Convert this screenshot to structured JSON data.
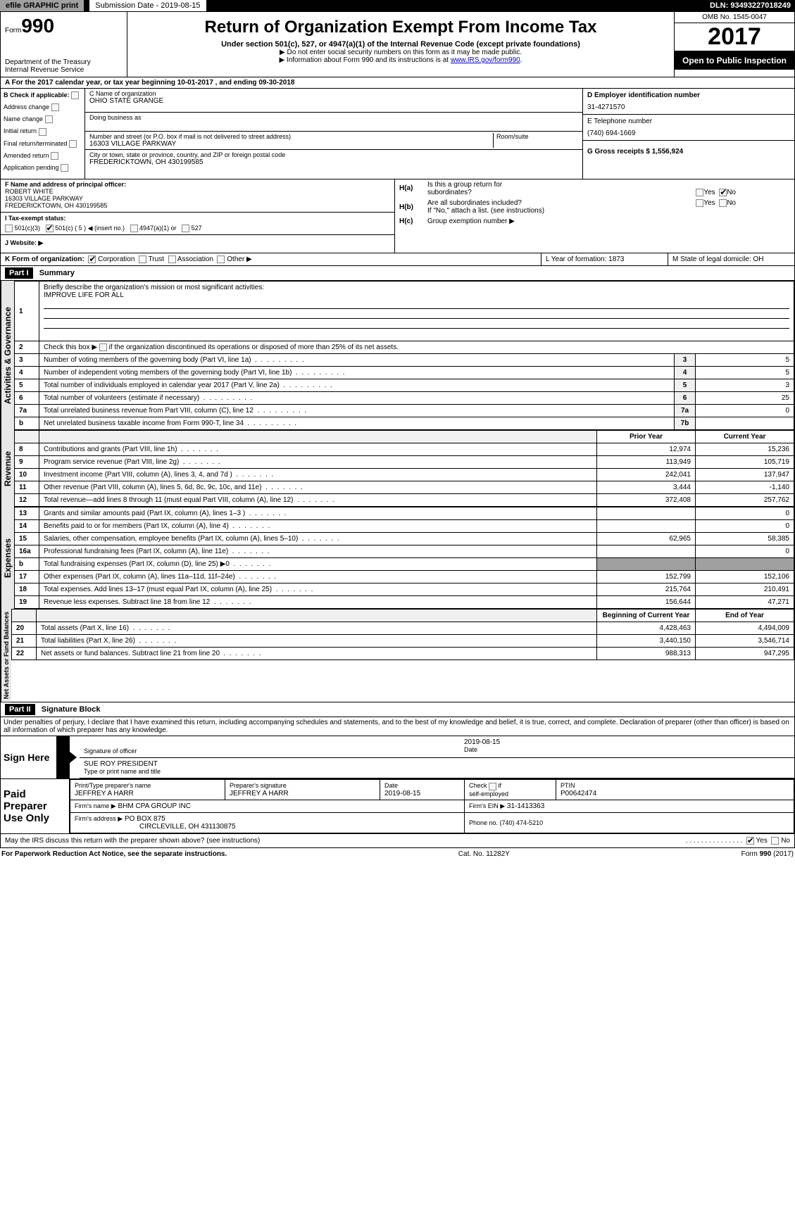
{
  "header": {
    "efile": "efile GRAPHIC print",
    "submission_label": "Submission Date - 2019-08-15",
    "dln": "DLN: 93493227018249"
  },
  "top": {
    "form_prefix": "Form",
    "form_number": "990",
    "dept1": "Department of the Treasury",
    "dept2": "Internal Revenue Service",
    "title": "Return of Organization Exempt From Income Tax",
    "sub1": "Under section 501(c), 527, or 4947(a)(1) of the Internal Revenue Code (except private foundations)",
    "sub2": "▶ Do not enter social security numbers on this form as it may be made public.",
    "sub3_prefix": "▶ Information about Form 990 and its instructions is at ",
    "sub3_link": "www.IRS.gov/form990",
    "omb": "OMB No. 1545-0047",
    "year": "2017",
    "open": "Open to Public Inspection"
  },
  "rowA": "A  For the 2017 calendar year, or tax year beginning 10-01-2017      , and ending 09-30-2018",
  "sectionB": {
    "b_label": "B Check if applicable:",
    "checks": [
      "Address change",
      "Name change",
      "Initial return",
      "Final return/terminated",
      "Amended return",
      "Application pending"
    ],
    "c_label": "C Name of organization",
    "org_name": "OHIO STATE GRANGE",
    "dba_label": "Doing business as",
    "addr_label": "Number and street (or P.O. box if mail is not delivered to street address)",
    "room_label": "Room/suite",
    "street": "16303 VILLAGE PARKWAY",
    "city_label": "City or town, state or province, country, and ZIP or foreign postal code",
    "city": "FREDERICKTOWN, OH  430199585",
    "d_label": "D Employer identification number",
    "ein": "31-4271570",
    "e_label": "E Telephone number",
    "phone": "(740) 694-1669",
    "g_label": "G Gross receipts $ 1,556,924"
  },
  "sectionF": {
    "f_label": "F Name and address of principal officer:",
    "name": "ROBERT WHITE",
    "street": "16303 VILLAGE PARKWAY",
    "city": "FREDERICKTOWN, OH  430199585",
    "i_label": "I   Tax-exempt status:",
    "i_opts": [
      "501(c)(3)",
      "501(c) ( 5 ) ◀ (insert no.)",
      "4947(a)(1) or",
      "527"
    ],
    "j_label": "J   Website: ▶",
    "ha_label": "H(a)",
    "ha_text1": "Is this a group return for",
    "ha_text2": "subordinates?",
    "hb_label": "H(b)",
    "hb_text": "Are all subordinates included?",
    "hb_note": "If \"No,\" attach a list. (see instructions)",
    "hc_label": "H(c)",
    "hc_text": "Group exemption number ▶",
    "yes": "Yes",
    "no": "No"
  },
  "rowK": {
    "k_label": "K Form of organization:",
    "opts": [
      "Corporation",
      "Trust",
      "Association",
      "Other ▶"
    ],
    "l_label": "L Year of formation: 1873",
    "m_label": "M State of legal domicile: OH"
  },
  "part1": {
    "header": "Part I",
    "title": "Summary",
    "l1_label": "Briefly describe the organization's mission or most significant activities:",
    "l1_value": "IMPROVE LIFE FOR ALL",
    "l2": "Check this box ▶       if the organization discontinued its operations or disposed of more than 25% of its net assets.",
    "rows_gov": [
      {
        "num": "3",
        "label": "Number of voting members of the governing body (Part VI, line 1a)",
        "box": "3",
        "val": "5"
      },
      {
        "num": "4",
        "label": "Number of independent voting members of the governing body (Part VI, line 1b)",
        "box": "4",
        "val": "5"
      },
      {
        "num": "5",
        "label": "Total number of individuals employed in calendar year 2017 (Part V, line 2a)",
        "box": "5",
        "val": "3"
      },
      {
        "num": "6",
        "label": "Total number of volunteers (estimate if necessary)",
        "box": "6",
        "val": "25"
      },
      {
        "num": "7a",
        "label": "Total unrelated business revenue from Part VIII, column (C), line 12",
        "box": "7a",
        "val": "0"
      },
      {
        "num": "b",
        "label": "Net unrelated business taxable income from Form 990-T, line 34",
        "box": "7b",
        "val": ""
      }
    ],
    "col_prior": "Prior Year",
    "col_current": "Current Year",
    "rows_rev": [
      {
        "num": "8",
        "label": "Contributions and grants (Part VIII, line 1h)",
        "p": "12,974",
        "c": "15,236"
      },
      {
        "num": "9",
        "label": "Program service revenue (Part VIII, line 2g)",
        "p": "113,949",
        "c": "105,719"
      },
      {
        "num": "10",
        "label": "Investment income (Part VIII, column (A), lines 3, 4, and 7d )",
        "p": "242,041",
        "c": "137,947"
      },
      {
        "num": "11",
        "label": "Other revenue (Part VIII, column (A), lines 5, 6d, 8c, 9c, 10c, and 11e)",
        "p": "3,444",
        "c": "-1,140"
      },
      {
        "num": "12",
        "label": "Total revenue—add lines 8 through 11 (must equal Part VIII, column (A), line 12)",
        "p": "372,408",
        "c": "257,762"
      }
    ],
    "rows_exp": [
      {
        "num": "13",
        "label": "Grants and similar amounts paid (Part IX, column (A), lines 1–3 )",
        "p": "",
        "c": "0"
      },
      {
        "num": "14",
        "label": "Benefits paid to or for members (Part IX, column (A), line 4)",
        "p": "",
        "c": "0"
      },
      {
        "num": "15",
        "label": "Salaries, other compensation, employee benefits (Part IX, column (A), lines 5–10)",
        "p": "62,965",
        "c": "58,385"
      },
      {
        "num": "16a",
        "label": "Professional fundraising fees (Part IX, column (A), line 11e)",
        "p": "",
        "c": "0"
      },
      {
        "num": "b",
        "label": "Total fundraising expenses (Part IX, column (D), line 25) ▶0",
        "p": "GRAY",
        "c": "GRAY"
      },
      {
        "num": "17",
        "label": "Other expenses (Part IX, column (A), lines 11a–11d, 11f–24e)",
        "p": "152,799",
        "c": "152,106"
      },
      {
        "num": "18",
        "label": "Total expenses. Add lines 13–17 (must equal Part IX, column (A), line 25)",
        "p": "215,764",
        "c": "210,491"
      },
      {
        "num": "19",
        "label": "Revenue less expenses. Subtract line 18 from line 12",
        "p": "156,644",
        "c": "47,271"
      }
    ],
    "col_begin": "Beginning of Current Year",
    "col_end": "End of Year",
    "rows_net": [
      {
        "num": "20",
        "label": "Total assets (Part X, line 16)",
        "p": "4,428,463",
        "c": "4,494,009"
      },
      {
        "num": "21",
        "label": "Total liabilities (Part X, line 26)",
        "p": "3,440,150",
        "c": "3,546,714"
      },
      {
        "num": "22",
        "label": "Net assets or fund balances. Subtract line 21 from line 20",
        "p": "988,313",
        "c": "947,295"
      }
    ],
    "vert_gov": "Activities & Governance",
    "vert_rev": "Revenue",
    "vert_exp": "Expenses",
    "vert_net": "Net Assets or Fund Balances"
  },
  "part2": {
    "header": "Part II",
    "title": "Signature Block",
    "declaration": "Under penalties of perjury, I declare that I have examined this return, including accompanying schedules and statements, and to the best of my knowledge and belief, it is true, correct, and complete. Declaration of preparer (other than officer) is based on all information of which preparer has any knowledge.",
    "sign_here": "Sign Here",
    "sig_label": "Signature of officer",
    "date_label": "Date",
    "sig_date": "2019-08-15",
    "name_title": "SUE ROY  PRESIDENT",
    "type_label": "Type or print name and title",
    "paid": "Paid Preparer Use Only",
    "prep_name_label": "Print/Type preparer's name",
    "prep_name": "JEFFREY A HARR",
    "prep_sig_label": "Preparer's signature",
    "prep_sig": "JEFFREY A HARR",
    "prep_date_label": "Date",
    "prep_date": "2019-08-15",
    "check_self": "Check         if self-employed",
    "ptin_label": "PTIN",
    "ptin": "P00642474",
    "firm_name_label": "Firm's name     ▶",
    "firm_name": "BHM CPA GROUP INC",
    "firm_ein_label": "Firm's EIN ▶",
    "firm_ein": "31-1413363",
    "firm_addr_label": "Firm's address ▶",
    "firm_addr1": "PO BOX 875",
    "firm_addr2": "CIRCLEVILLE, OH  431130875",
    "phone_label": "Phone no. (740) 474-5210",
    "discuss": "May the IRS discuss this return with the preparer shown above? (see instructions)"
  },
  "footer": {
    "pra": "For Paperwork Reduction Act Notice, see the separate instructions.",
    "cat": "Cat. No. 11282Y",
    "form": "Form 990 (2017)"
  }
}
